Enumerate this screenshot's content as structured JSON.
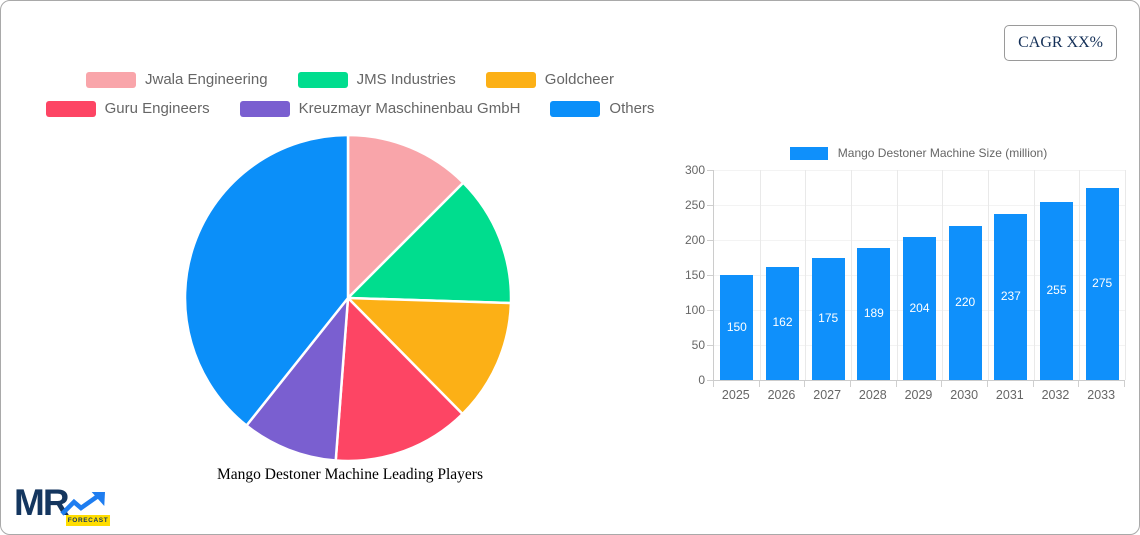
{
  "frame": {
    "cagr_label": "CAGR XX%"
  },
  "logo": {
    "brand": "MR",
    "tagline": "FORECAST"
  },
  "chart_data": [
    {
      "type": "pie",
      "title": "Mango Destoner Machine Leading Players",
      "legend_position": "top",
      "slices": [
        {
          "label": "Jwala Engineering",
          "value_pct": 12.5,
          "color": "#f9a5aa"
        },
        {
          "label": "JMS Industries",
          "value_pct": 13.0,
          "color": "#00dd8e"
        },
        {
          "label": "Goldcheer",
          "value_pct": 12.1,
          "color": "#fcb016"
        },
        {
          "label": "Guru Engineers",
          "value_pct": 13.6,
          "color": "#fd4564"
        },
        {
          "label": "Kreuzmayr Maschinenbau GmbH",
          "value_pct": 9.5,
          "color": "#7a5fd0"
        },
        {
          "label": "Others",
          "value_pct": 39.3,
          "color": "#0b8ff9"
        }
      ]
    },
    {
      "type": "bar",
      "legend_label": "Mango Destoner Machine Size (million)",
      "categories": [
        "2025",
        "2026",
        "2027",
        "2028",
        "2029",
        "2030",
        "2031",
        "2032",
        "2033"
      ],
      "values": [
        150,
        162,
        175,
        189,
        204,
        220,
        237,
        255,
        275
      ],
      "bar_color": "#0f90fb",
      "value_label_color": "#ffffff",
      "ylim": [
        0,
        300
      ],
      "ytick_step": 50,
      "grid": true,
      "legend_position": "top"
    }
  ]
}
